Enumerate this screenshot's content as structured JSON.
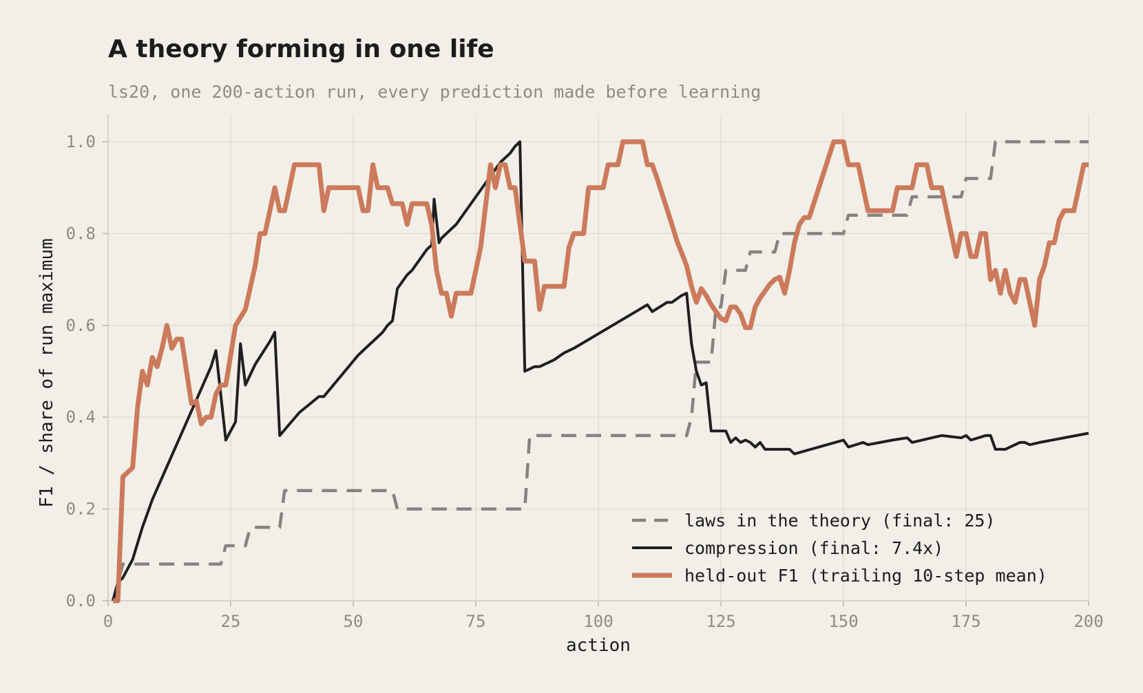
{
  "chart_data": {
    "type": "line",
    "title": "A theory forming in one life",
    "subtitle": "ls20, one 200-action run, every prediction made before learning",
    "xlabel": "action",
    "ylabel": "F1 / share of run maximum",
    "xlim": [
      0,
      200
    ],
    "ylim": [
      0,
      1
    ],
    "xticks": [
      0,
      25,
      50,
      75,
      100,
      125,
      150,
      175,
      200
    ],
    "yticks": [
      0.0,
      0.2,
      0.4,
      0.6,
      0.8,
      1.0
    ],
    "xtick_labels": [
      "0",
      "25",
      "50",
      "75",
      "100",
      "125",
      "150",
      "175",
      "200"
    ],
    "ytick_labels": [
      "0.0",
      "0.2",
      "0.4",
      "0.6",
      "0.8",
      "1.0"
    ],
    "grid": true,
    "legend_position": "bottom-right",
    "series": [
      {
        "name": "laws in the theory (final: 25)",
        "color": "#85837e",
        "style": "dashed",
        "points": [
          [
            1,
            0
          ],
          [
            2,
            0.04
          ],
          [
            3,
            0.08
          ],
          [
            23,
            0.08
          ],
          [
            24,
            0.12
          ],
          [
            28,
            0.12
          ],
          [
            29,
            0.16
          ],
          [
            35,
            0.16
          ],
          [
            36,
            0.24
          ],
          [
            58,
            0.24
          ],
          [
            59,
            0.2
          ],
          [
            85,
            0.2
          ],
          [
            86,
            0.36
          ],
          [
            118,
            0.36
          ],
          [
            119,
            0.4
          ],
          [
            120,
            0.52
          ],
          [
            123,
            0.52
          ],
          [
            124,
            0.64
          ],
          [
            125,
            0.64
          ],
          [
            126,
            0.72
          ],
          [
            130,
            0.72
          ],
          [
            131,
            0.76
          ],
          [
            136,
            0.76
          ],
          [
            137,
            0.8
          ],
          [
            150,
            0.8
          ],
          [
            151,
            0.84
          ],
          [
            163,
            0.84
          ],
          [
            164,
            0.88
          ],
          [
            174,
            0.88
          ],
          [
            175,
            0.92
          ],
          [
            177,
            0.92
          ],
          [
            178,
            0.92
          ],
          [
            180,
            0.92
          ],
          [
            181,
            1.0
          ],
          [
            200,
            1.0
          ]
        ]
      },
      {
        "name": "compression (final: 7.4x)",
        "color": "#1f1f1f",
        "style": "solid",
        "points": [
          [
            1,
            0
          ],
          [
            2,
            0.04
          ],
          [
            3,
            0.05
          ],
          [
            5,
            0.09
          ],
          [
            7,
            0.16
          ],
          [
            8,
            0.19
          ],
          [
            9,
            0.22
          ],
          [
            21,
            0.51
          ],
          [
            22,
            0.545
          ],
          [
            24,
            0.35
          ],
          [
            26,
            0.39
          ],
          [
            27,
            0.56
          ],
          [
            28,
            0.47
          ],
          [
            30,
            0.515
          ],
          [
            33,
            0.565
          ],
          [
            34,
            0.585
          ],
          [
            35,
            0.36
          ],
          [
            39,
            0.41
          ],
          [
            43,
            0.445
          ],
          [
            44,
            0.445
          ],
          [
            51,
            0.535
          ],
          [
            52,
            0.545
          ],
          [
            55,
            0.575
          ],
          [
            56,
            0.585
          ],
          [
            57,
            0.6
          ],
          [
            58,
            0.61
          ],
          [
            59,
            0.68
          ],
          [
            61,
            0.71
          ],
          [
            62,
            0.72
          ],
          [
            65,
            0.765
          ],
          [
            66,
            0.775
          ],
          [
            66.5,
            0.875
          ],
          [
            67.5,
            0.78
          ],
          [
            68,
            0.79
          ],
          [
            69,
            0.8
          ],
          [
            70,
            0.81
          ],
          [
            71,
            0.82
          ],
          [
            80,
            0.955
          ],
          [
            81,
            0.965
          ],
          [
            82,
            0.975
          ],
          [
            83,
            0.99
          ],
          [
            84,
            1.0
          ],
          [
            85,
            0.5
          ],
          [
            87,
            0.51
          ],
          [
            88,
            0.51
          ],
          [
            91,
            0.525
          ],
          [
            93,
            0.54
          ],
          [
            95,
            0.55
          ],
          [
            110,
            0.645
          ],
          [
            111,
            0.63
          ],
          [
            114,
            0.65
          ],
          [
            115,
            0.65
          ],
          [
            117,
            0.665
          ],
          [
            118,
            0.67
          ],
          [
            119,
            0.56
          ],
          [
            120,
            0.5
          ],
          [
            121,
            0.47
          ],
          [
            122,
            0.475
          ],
          [
            123,
            0.37
          ],
          [
            124,
            0.37
          ],
          [
            125,
            0.37
          ],
          [
            126,
            0.37
          ],
          [
            127,
            0.345
          ],
          [
            128,
            0.355
          ],
          [
            129,
            0.345
          ],
          [
            130,
            0.35
          ],
          [
            131,
            0.345
          ],
          [
            132,
            0.335
          ],
          [
            133,
            0.345
          ],
          [
            134,
            0.33
          ],
          [
            139,
            0.33
          ],
          [
            140,
            0.32
          ],
          [
            150,
            0.35
          ],
          [
            151,
            0.335
          ],
          [
            154,
            0.345
          ],
          [
            155,
            0.34
          ],
          [
            160,
            0.35
          ],
          [
            163,
            0.355
          ],
          [
            164,
            0.345
          ],
          [
            168,
            0.355
          ],
          [
            170,
            0.36
          ],
          [
            174,
            0.355
          ],
          [
            175,
            0.36
          ],
          [
            176,
            0.35
          ],
          [
            179,
            0.36
          ],
          [
            180,
            0.36
          ],
          [
            181,
            0.33
          ],
          [
            183,
            0.33
          ],
          [
            184,
            0.335
          ],
          [
            185,
            0.34
          ],
          [
            186,
            0.345
          ],
          [
            187,
            0.345
          ],
          [
            188,
            0.34
          ],
          [
            190,
            0.345
          ],
          [
            200,
            0.365
          ]
        ]
      },
      {
        "name": "held-out F1 (trailing 10-step mean)",
        "color": "#cc7a5c",
        "style": "solid",
        "points": [
          [
            1,
            0
          ],
          [
            2,
            0
          ],
          [
            3,
            0.27
          ],
          [
            4,
            0.28
          ],
          [
            5,
            0.29
          ],
          [
            6,
            0.42
          ],
          [
            7,
            0.5
          ],
          [
            8,
            0.47
          ],
          [
            9,
            0.53
          ],
          [
            10,
            0.51
          ],
          [
            11,
            0.55
          ],
          [
            12,
            0.6
          ],
          [
            13,
            0.55
          ],
          [
            14,
            0.57
          ],
          [
            15,
            0.57
          ],
          [
            17,
            0.43
          ],
          [
            18,
            0.435
          ],
          [
            19,
            0.385
          ],
          [
            20,
            0.4
          ],
          [
            21,
            0.4
          ],
          [
            22,
            0.45
          ],
          [
            23,
            0.47
          ],
          [
            24,
            0.47
          ],
          [
            26,
            0.6
          ],
          [
            28,
            0.635
          ],
          [
            30,
            0.73
          ],
          [
            31,
            0.8
          ],
          [
            32,
            0.8
          ],
          [
            34,
            0.9
          ],
          [
            35,
            0.85
          ],
          [
            36,
            0.85
          ],
          [
            38,
            0.95
          ],
          [
            43,
            0.95
          ],
          [
            44,
            0.85
          ],
          [
            45,
            0.9
          ],
          [
            51,
            0.9
          ],
          [
            52,
            0.85
          ],
          [
            53,
            0.85
          ],
          [
            54,
            0.95
          ],
          [
            55,
            0.9
          ],
          [
            57,
            0.9
          ],
          [
            58,
            0.865
          ],
          [
            60,
            0.865
          ],
          [
            61,
            0.82
          ],
          [
            62,
            0.865
          ],
          [
            65,
            0.865
          ],
          [
            66,
            0.82
          ],
          [
            67,
            0.72
          ],
          [
            68,
            0.67
          ],
          [
            69,
            0.67
          ],
          [
            70,
            0.62
          ],
          [
            71,
            0.67
          ],
          [
            74,
            0.67
          ],
          [
            76,
            0.77
          ],
          [
            77,
            0.86
          ],
          [
            78,
            0.95
          ],
          [
            79,
            0.9
          ],
          [
            80,
            0.95
          ],
          [
            81,
            0.95
          ],
          [
            82,
            0.9
          ],
          [
            83,
            0.9
          ],
          [
            85,
            0.74
          ],
          [
            87,
            0.74
          ],
          [
            88,
            0.635
          ],
          [
            89,
            0.685
          ],
          [
            93,
            0.685
          ],
          [
            94,
            0.77
          ],
          [
            95,
            0.8
          ],
          [
            97,
            0.8
          ],
          [
            98,
            0.9
          ],
          [
            101,
            0.9
          ],
          [
            102,
            0.95
          ],
          [
            104,
            0.95
          ],
          [
            105,
            1.0
          ],
          [
            109,
            1.0
          ],
          [
            110,
            0.95
          ],
          [
            111,
            0.95
          ],
          [
            112,
            0.92
          ],
          [
            115,
            0.82
          ],
          [
            116,
            0.785
          ],
          [
            118,
            0.73
          ],
          [
            119,
            0.685
          ],
          [
            120,
            0.65
          ],
          [
            121,
            0.68
          ],
          [
            122,
            0.665
          ],
          [
            123,
            0.645
          ],
          [
            124,
            0.63
          ],
          [
            125,
            0.615
          ],
          [
            126,
            0.61
          ],
          [
            127,
            0.64
          ],
          [
            128,
            0.64
          ],
          [
            129,
            0.625
          ],
          [
            130,
            0.595
          ],
          [
            131,
            0.595
          ],
          [
            132,
            0.64
          ],
          [
            133,
            0.66
          ],
          [
            135,
            0.69
          ],
          [
            136,
            0.7
          ],
          [
            137,
            0.705
          ],
          [
            138,
            0.67
          ],
          [
            139,
            0.72
          ],
          [
            140,
            0.78
          ],
          [
            141,
            0.82
          ],
          [
            142,
            0.835
          ],
          [
            143,
            0.835
          ],
          [
            148,
            1.0
          ],
          [
            150,
            1.0
          ],
          [
            151,
            0.95
          ],
          [
            153,
            0.95
          ],
          [
            155,
            0.85
          ],
          [
            160,
            0.85
          ],
          [
            161,
            0.9
          ],
          [
            164,
            0.9
          ],
          [
            165,
            0.95
          ],
          [
            167,
            0.95
          ],
          [
            168,
            0.9
          ],
          [
            170,
            0.9
          ],
          [
            172,
            0.8
          ],
          [
            173,
            0.75
          ],
          [
            174,
            0.8
          ],
          [
            175,
            0.8
          ],
          [
            176,
            0.75
          ],
          [
            177,
            0.75
          ],
          [
            178,
            0.8
          ],
          [
            179,
            0.8
          ],
          [
            180,
            0.7
          ],
          [
            181,
            0.72
          ],
          [
            182,
            0.67
          ],
          [
            183,
            0.72
          ],
          [
            184,
            0.67
          ],
          [
            185,
            0.65
          ],
          [
            186,
            0.7
          ],
          [
            187,
            0.7
          ],
          [
            189,
            0.6
          ],
          [
            190,
            0.7
          ],
          [
            191,
            0.73
          ],
          [
            192,
            0.78
          ],
          [
            193,
            0.78
          ],
          [
            194,
            0.83
          ],
          [
            195,
            0.85
          ],
          [
            197,
            0.85
          ],
          [
            198,
            0.9
          ],
          [
            199,
            0.95
          ],
          [
            200,
            0.95
          ]
        ]
      }
    ]
  }
}
